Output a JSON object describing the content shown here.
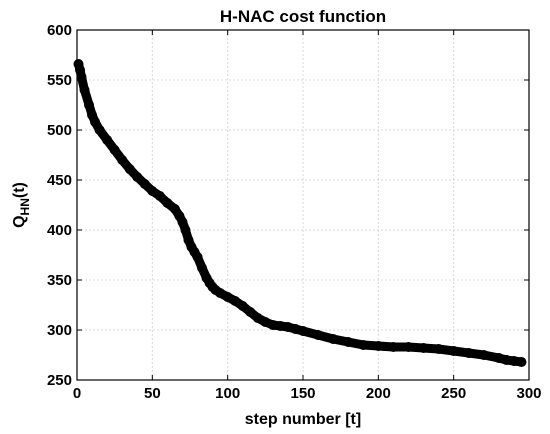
{
  "chart_data": {
    "type": "line",
    "title": "H-NAC cost function",
    "xlabel": "step number [t]",
    "ylabel_base": "Q",
    "ylabel_sub": "HN",
    "ylabel_suffix": "(t)",
    "xlim": [
      0,
      300
    ],
    "ylim": [
      250,
      600
    ],
    "xticks": [
      0,
      50,
      100,
      150,
      200,
      250,
      300
    ],
    "yticks": [
      250,
      300,
      350,
      400,
      450,
      500,
      550,
      600
    ],
    "grid": true,
    "marker": "circle",
    "series": [
      {
        "color": "#000000",
        "x": [
          1,
          2,
          3,
          5,
          8,
          10,
          12,
          15,
          20,
          25,
          30,
          35,
          40,
          45,
          50,
          55,
          60,
          65,
          68,
          70,
          72,
          74,
          76,
          78,
          80,
          83,
          86,
          88,
          90,
          92,
          95,
          100,
          105,
          110,
          115,
          120,
          125,
          130,
          135,
          140,
          145,
          150,
          160,
          170,
          180,
          190,
          200,
          210,
          220,
          230,
          240,
          250,
          260,
          270,
          280,
          285,
          290,
          295
        ],
        "y": [
          566,
          560,
          553,
          540,
          525,
          515,
          508,
          500,
          490,
          480,
          470,
          461,
          453,
          446,
          439,
          434,
          427,
          421,
          414,
          408,
          400,
          390,
          383,
          378,
          373,
          362,
          352,
          347,
          343,
          340,
          337,
          333,
          329,
          324,
          318,
          312,
          308,
          305,
          304,
          303,
          301,
          299,
          295,
          291,
          288,
          285,
          284,
          283,
          283,
          282,
          281,
          279,
          277,
          275,
          272,
          270,
          269,
          268
        ]
      }
    ]
  }
}
